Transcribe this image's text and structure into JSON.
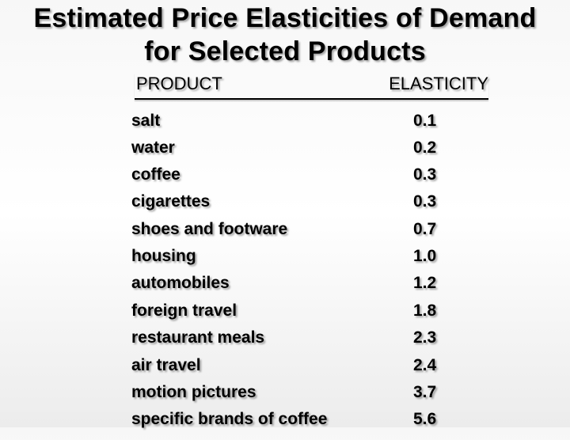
{
  "title": {
    "line1": "Estimated Price Elasticities of Demand",
    "line2": "for Selected Products"
  },
  "table": {
    "headers": {
      "product": "PRODUCT",
      "elasticity": "ELASTICITY"
    },
    "rows": [
      {
        "product": "salt",
        "elasticity": "0.1"
      },
      {
        "product": "water",
        "elasticity": "0.2"
      },
      {
        "product": "coffee",
        "elasticity": "0.3"
      },
      {
        "product": "cigarettes",
        "elasticity": "0.3"
      },
      {
        "product": "shoes and footware",
        "elasticity": "0.7"
      },
      {
        "product": "housing",
        "elasticity": "1.0"
      },
      {
        "product": "automobiles",
        "elasticity": "1.2"
      },
      {
        "product": "foreign travel",
        "elasticity": "1.8"
      },
      {
        "product": "restaurant meals",
        "elasticity": "2.3"
      },
      {
        "product": "air travel",
        "elasticity": "2.4"
      },
      {
        "product": "motion pictures",
        "elasticity": "3.7"
      },
      {
        "product": "specific brands of coffee",
        "elasticity": "5.6"
      }
    ]
  }
}
